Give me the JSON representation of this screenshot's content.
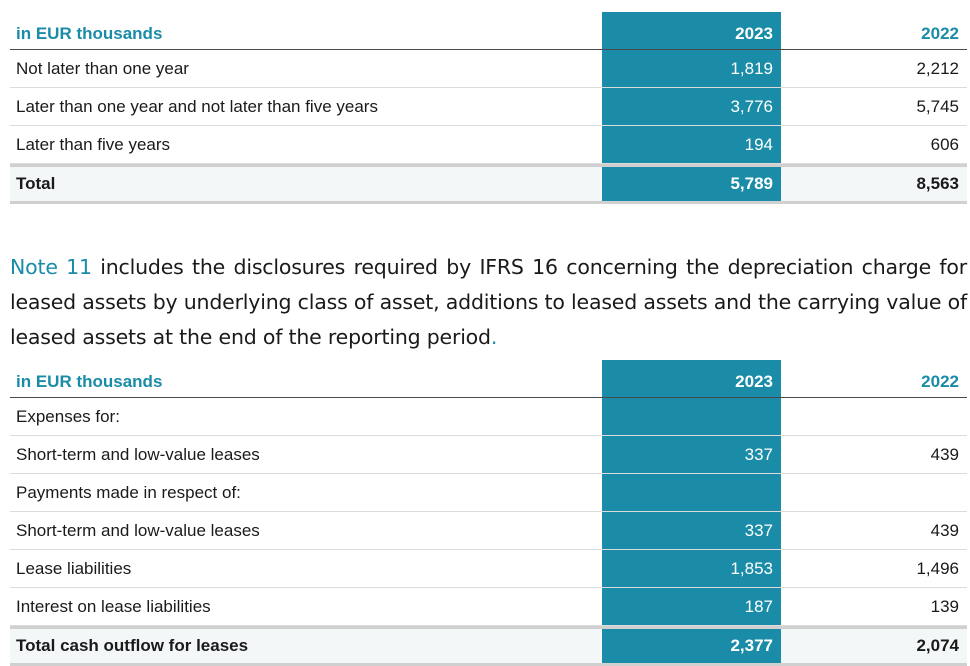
{
  "table1": {
    "header": {
      "label": "in EUR thousands",
      "y2023": "2023",
      "y2022": "2022"
    },
    "rows": [
      {
        "label": "Not later than one year",
        "y2023": "1,819",
        "y2022": "2,212"
      },
      {
        "label": "Later than one year and not later than five years",
        "y2023": "3,776",
        "y2022": "5,745"
      },
      {
        "label": "Later than five years",
        "y2023": "194",
        "y2022": "606"
      }
    ],
    "total": {
      "label": "Total",
      "y2023": "5,789",
      "y2022": "8,563"
    }
  },
  "note": {
    "link": "Note 11",
    "text": " includes the disclosures required by IFRS 16 concerning the depreciation charge for leased assets by underlying class of asset, additions to leased assets and the carrying value of leased assets at the end of the reporting period",
    "end": "."
  },
  "table2": {
    "header": {
      "label": "in EUR thousands",
      "y2023": "2023",
      "y2022": "2022"
    },
    "rows": [
      {
        "label": "Expenses for:",
        "y2023": "",
        "y2022": ""
      },
      {
        "label": "Short-term and low-value leases",
        "y2023": "337",
        "y2022": "439"
      },
      {
        "label": "Payments made in respect of:",
        "y2023": "",
        "y2022": ""
      },
      {
        "label": "Short-term and low-value leases",
        "y2023": "337",
        "y2022": "439"
      },
      {
        "label": "Lease liabilities",
        "y2023": "1,853",
        "y2022": "1,496"
      },
      {
        "label": "Interest on lease liabilities",
        "y2023": "187",
        "y2022": "139"
      }
    ],
    "total": {
      "label": "Total cash outflow for leases",
      "y2023": "2,377",
      "y2022": "2,074"
    }
  },
  "colors": {
    "accent": "#1a8ca8",
    "text": "#1a1a1a"
  }
}
